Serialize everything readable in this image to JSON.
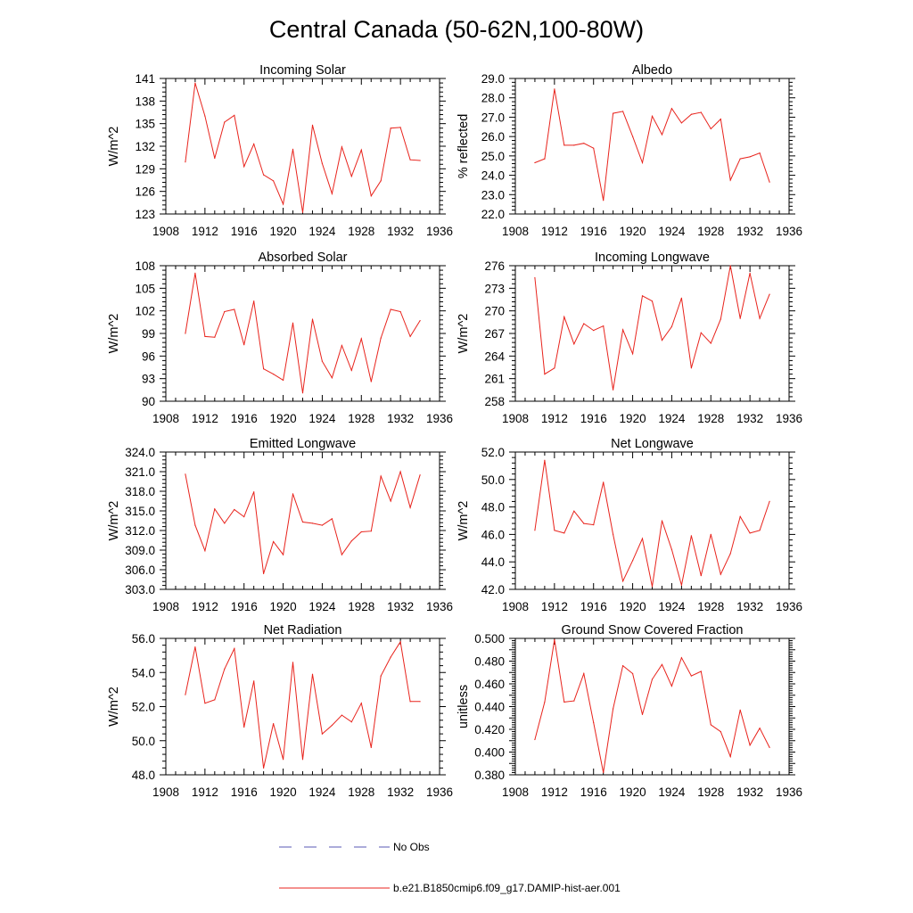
{
  "title": "Central Canada (50-62N,100-80W)",
  "legend": {
    "obs_label": "No Obs",
    "model_label": "b.e21.B1850cmip6.f09_g17.DAMIP-hist-aer.001",
    "obs_color": "#5a5ab4",
    "model_color": "#e8231c"
  },
  "chart_data": [
    {
      "type": "line",
      "title": "Incoming Solar",
      "ylabel": "W/m^2",
      "xlim": [
        1908,
        1936
      ],
      "xticks": [
        1908,
        1912,
        1916,
        1920,
        1924,
        1928,
        1932,
        1936
      ],
      "xtick_labels": [
        "1908",
        "1912",
        "1916",
        "1920",
        "1924",
        "1928",
        "1932",
        "1936"
      ],
      "ylim": [
        123,
        141
      ],
      "yticks": [
        123,
        126,
        129,
        132,
        135,
        138,
        141
      ],
      "ytick_labels": [
        "123",
        "126",
        "129",
        "132",
        "135",
        "138",
        "141"
      ],
      "x": [
        1910,
        1911,
        1912,
        1913,
        1914,
        1915,
        1916,
        1917,
        1918,
        1919,
        1920,
        1921,
        1922,
        1923,
        1924,
        1925,
        1926,
        1927,
        1928,
        1929,
        1930,
        1931,
        1932,
        1933,
        1934
      ],
      "series": [
        {
          "values": [
            129.9,
            140.4,
            136.0,
            130.4,
            135.2,
            136.1,
            129.3,
            132.3,
            128.2,
            127.4,
            124.3,
            131.6,
            123.2,
            134.8,
            129.7,
            125.7,
            131.9,
            128.0,
            131.5,
            125.4,
            127.4,
            134.4,
            134.5,
            130.2,
            130.1
          ]
        }
      ]
    },
    {
      "type": "line",
      "title": "Albedo",
      "ylabel": "% reflected",
      "xlim": [
        1908,
        1936
      ],
      "xticks": [
        1908,
        1912,
        1916,
        1920,
        1924,
        1928,
        1932,
        1936
      ],
      "xtick_labels": [
        "1908",
        "1912",
        "1916",
        "1920",
        "1924",
        "1928",
        "1932",
        "1936"
      ],
      "ylim": [
        22.0,
        29.0
      ],
      "yticks": [
        22,
        23,
        24,
        25,
        26,
        27,
        28,
        29
      ],
      "ytick_labels": [
        "22.0",
        "23.0",
        "24.0",
        "25.0",
        "26.0",
        "27.0",
        "28.0",
        "29.0"
      ],
      "x": [
        1910,
        1911,
        1912,
        1913,
        1914,
        1915,
        1916,
        1917,
        1918,
        1919,
        1920,
        1921,
        1922,
        1923,
        1924,
        1925,
        1926,
        1927,
        1928,
        1929,
        1930,
        1931,
        1932,
        1933,
        1934
      ],
      "series": [
        {
          "values": [
            24.65,
            24.85,
            28.45,
            25.55,
            25.55,
            25.65,
            25.4,
            22.7,
            27.2,
            27.3,
            26.0,
            24.65,
            27.05,
            26.1,
            27.45,
            26.7,
            27.15,
            27.25,
            26.4,
            26.9,
            23.75,
            24.85,
            24.95,
            25.15,
            23.65
          ]
        }
      ]
    },
    {
      "type": "line",
      "title": "Absorbed Solar",
      "ylabel": "W/m^2",
      "xlim": [
        1908,
        1936
      ],
      "xticks": [
        1908,
        1912,
        1916,
        1920,
        1924,
        1928,
        1932,
        1936
      ],
      "xtick_labels": [
        "1908",
        "1912",
        "1916",
        "1920",
        "1924",
        "1928",
        "1932",
        "1936"
      ],
      "ylim": [
        90,
        108
      ],
      "yticks": [
        90,
        93,
        96,
        99,
        102,
        105,
        108
      ],
      "ytick_labels": [
        "90",
        "93",
        "96",
        "99",
        "102",
        "105",
        "108"
      ],
      "x": [
        1910,
        1911,
        1912,
        1913,
        1914,
        1915,
        1916,
        1917,
        1918,
        1919,
        1920,
        1921,
        1922,
        1923,
        1924,
        1925,
        1926,
        1927,
        1928,
        1929,
        1930,
        1931,
        1932,
        1933,
        1934
      ],
      "series": [
        {
          "values": [
            99.0,
            107.0,
            98.6,
            98.5,
            101.9,
            102.2,
            97.5,
            103.3,
            94.3,
            93.6,
            92.8,
            100.4,
            91.1,
            100.9,
            95.3,
            93.1,
            97.4,
            94.1,
            98.3,
            92.6,
            98.4,
            102.2,
            101.9,
            98.6,
            100.7
          ]
        }
      ]
    },
    {
      "type": "line",
      "title": "Incoming Longwave",
      "ylabel": "W/m^2",
      "xlim": [
        1908,
        1936
      ],
      "xticks": [
        1908,
        1912,
        1916,
        1920,
        1924,
        1928,
        1932,
        1936
      ],
      "xtick_labels": [
        "1908",
        "1912",
        "1916",
        "1920",
        "1924",
        "1928",
        "1932",
        "1936"
      ],
      "ylim": [
        258,
        276
      ],
      "yticks": [
        258,
        261,
        264,
        267,
        270,
        273,
        276
      ],
      "ytick_labels": [
        "258",
        "261",
        "264",
        "267",
        "270",
        "273",
        "276"
      ],
      "x": [
        1910,
        1911,
        1912,
        1913,
        1914,
        1915,
        1916,
        1917,
        1918,
        1919,
        1920,
        1921,
        1922,
        1923,
        1924,
        1925,
        1926,
        1927,
        1928,
        1929,
        1930,
        1931,
        1932,
        1933,
        1934
      ],
      "series": [
        {
          "values": [
            274.4,
            261.6,
            262.4,
            269.2,
            265.6,
            268.3,
            267.4,
            268.0,
            259.5,
            267.5,
            264.3,
            272.0,
            271.3,
            266.1,
            267.9,
            271.7,
            262.4,
            267.1,
            265.7,
            268.9,
            276.0,
            269.0,
            275.0,
            269.0,
            272.2
          ]
        }
      ]
    },
    {
      "type": "line",
      "title": "Emitted Longwave",
      "ylabel": "W/m^2",
      "xlim": [
        1908,
        1936
      ],
      "xticks": [
        1908,
        1912,
        1916,
        1920,
        1924,
        1928,
        1932,
        1936
      ],
      "xtick_labels": [
        "1908",
        "1912",
        "1916",
        "1920",
        "1924",
        "1928",
        "1932",
        "1936"
      ],
      "ylim": [
        303.0,
        324.0
      ],
      "yticks": [
        303,
        306,
        309,
        312,
        315,
        318,
        321,
        324
      ],
      "ytick_labels": [
        "303.0",
        "306.0",
        "309.0",
        "312.0",
        "315.0",
        "318.0",
        "321.0",
        "324.0"
      ],
      "x": [
        1910,
        1911,
        1912,
        1913,
        1914,
        1915,
        1916,
        1917,
        1918,
        1919,
        1920,
        1921,
        1922,
        1923,
        1924,
        1925,
        1926,
        1927,
        1928,
        1929,
        1930,
        1931,
        1932,
        1933,
        1934
      ],
      "series": [
        {
          "values": [
            320.6,
            312.8,
            308.9,
            315.3,
            313.1,
            315.2,
            314.1,
            317.9,
            305.4,
            310.3,
            308.3,
            317.6,
            313.3,
            313.1,
            312.8,
            313.8,
            308.3,
            310.4,
            311.8,
            311.9,
            320.3,
            316.5,
            321.0,
            315.5,
            320.5
          ]
        }
      ]
    },
    {
      "type": "line",
      "title": "Net Longwave",
      "ylabel": "W/m^2",
      "xlim": [
        1908,
        1936
      ],
      "xticks": [
        1908,
        1912,
        1916,
        1920,
        1924,
        1928,
        1932,
        1936
      ],
      "xtick_labels": [
        "1908",
        "1912",
        "1916",
        "1920",
        "1924",
        "1928",
        "1932",
        "1936"
      ],
      "ylim": [
        42.0,
        52.0
      ],
      "yticks": [
        42,
        44,
        46,
        48,
        50,
        52
      ],
      "ytick_labels": [
        "42.0",
        "44.0",
        "46.0",
        "48.0",
        "50.0",
        "52.0"
      ],
      "x": [
        1910,
        1911,
        1912,
        1913,
        1914,
        1915,
        1916,
        1917,
        1918,
        1919,
        1920,
        1921,
        1922,
        1923,
        1924,
        1925,
        1926,
        1927,
        1928,
        1929,
        1930,
        1931,
        1932,
        1933,
        1934
      ],
      "series": [
        {
          "values": [
            46.3,
            51.4,
            46.3,
            46.1,
            47.7,
            46.8,
            46.7,
            49.8,
            46.0,
            42.6,
            44.1,
            45.7,
            42.2,
            47.0,
            44.9,
            42.3,
            45.9,
            43.0,
            46.0,
            43.1,
            44.6,
            47.3,
            46.1,
            46.3,
            48.4
          ]
        }
      ]
    },
    {
      "type": "line",
      "title": "Net Radiation",
      "ylabel": "W/m^2",
      "xlim": [
        1908,
        1936
      ],
      "xticks": [
        1908,
        1912,
        1916,
        1920,
        1924,
        1928,
        1932,
        1936
      ],
      "xtick_labels": [
        "1908",
        "1912",
        "1916",
        "1920",
        "1924",
        "1928",
        "1932",
        "1936"
      ],
      "ylim": [
        48.0,
        56.0
      ],
      "yticks": [
        48,
        50,
        52,
        54,
        56
      ],
      "ytick_labels": [
        "48.0",
        "50.0",
        "52.0",
        "54.0",
        "56.0"
      ],
      "x": [
        1910,
        1911,
        1912,
        1913,
        1914,
        1915,
        1916,
        1917,
        1918,
        1919,
        1920,
        1921,
        1922,
        1923,
        1924,
        1925,
        1926,
        1927,
        1928,
        1929,
        1930,
        1931,
        1932,
        1933,
        1934
      ],
      "series": [
        {
          "values": [
            52.7,
            55.5,
            52.2,
            52.4,
            54.2,
            55.4,
            50.8,
            53.5,
            48.4,
            51.0,
            48.9,
            54.6,
            48.9,
            53.9,
            50.4,
            50.9,
            51.5,
            51.1,
            52.2,
            49.6,
            53.8,
            54.9,
            55.8,
            52.3,
            52.3
          ]
        }
      ]
    },
    {
      "type": "line",
      "title": "Ground Snow Covered Fraction",
      "ylabel": "unitless",
      "xlim": [
        1908,
        1936
      ],
      "xticks": [
        1908,
        1912,
        1916,
        1920,
        1924,
        1928,
        1932,
        1936
      ],
      "xtick_labels": [
        "1908",
        "1912",
        "1916",
        "1920",
        "1924",
        "1928",
        "1932",
        "1936"
      ],
      "ylim": [
        0.38,
        0.5
      ],
      "yticks": [
        0.38,
        0.39,
        0.4,
        0.41,
        0.42,
        0.43,
        0.44,
        0.45,
        0.46,
        0.47,
        0.48,
        0.49,
        0.5
      ],
      "ytick_labels": [
        "0.380",
        "",
        "0.400",
        "",
        "0.420",
        "",
        "0.440",
        "",
        "0.460",
        "",
        "0.480",
        "",
        "0.500"
      ],
      "x": [
        1910,
        1911,
        1912,
        1913,
        1914,
        1915,
        1916,
        1917,
        1918,
        1919,
        1920,
        1921,
        1922,
        1923,
        1924,
        1925,
        1926,
        1927,
        1928,
        1929,
        1930,
        1931,
        1932,
        1933,
        1934
      ],
      "series": [
        {
          "values": [
            0.411,
            0.444,
            0.499,
            0.444,
            0.445,
            0.469,
            0.426,
            0.382,
            0.438,
            0.476,
            0.469,
            0.433,
            0.464,
            0.477,
            0.458,
            0.483,
            0.467,
            0.471,
            0.424,
            0.418,
            0.396,
            0.437,
            0.406,
            0.421,
            0.404
          ]
        }
      ]
    }
  ]
}
